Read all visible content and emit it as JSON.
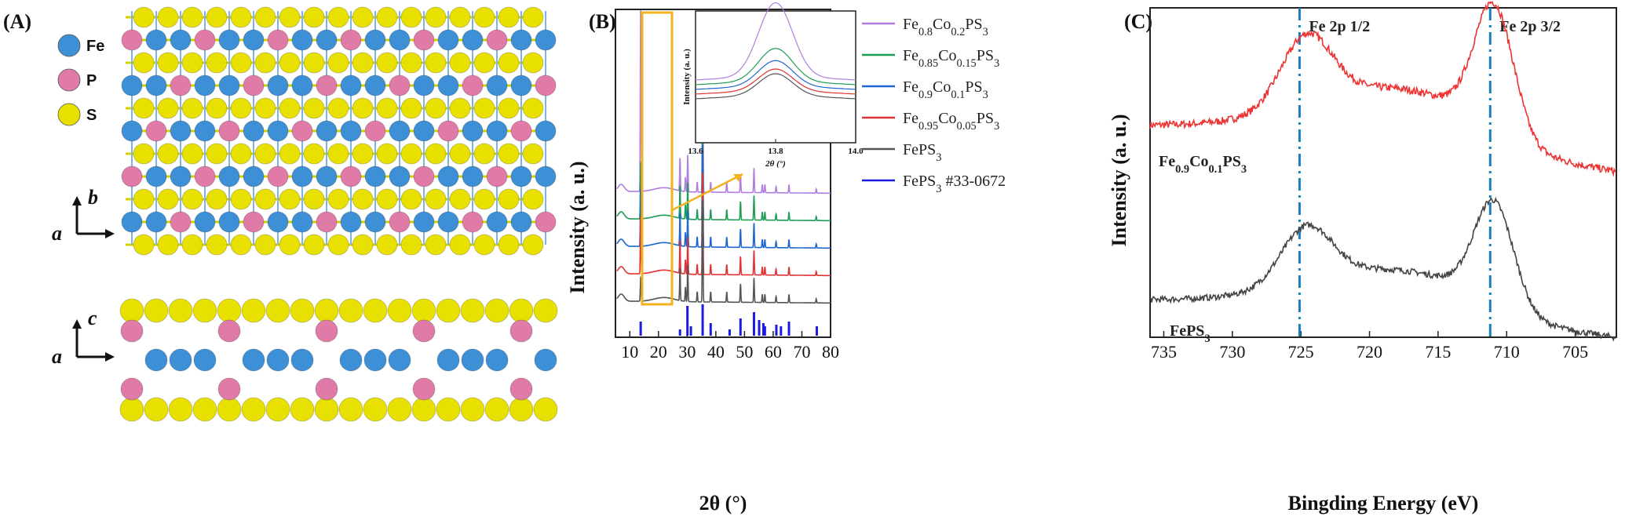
{
  "panels": {
    "a": {
      "label": "(A)"
    },
    "b": {
      "label": "(B)"
    },
    "c": {
      "label": "(C)"
    }
  },
  "structure": {
    "legend": [
      {
        "name": "Fe",
        "color": "#3d8fd6"
      },
      {
        "name": "P",
        "color": "#e07aa6"
      },
      {
        "name": "S",
        "color": "#e8e000"
      }
    ],
    "top_view_axes": {
      "vertical": "b",
      "horizontal": "a"
    },
    "side_view_axes": {
      "vertical": "c",
      "horizontal": "a"
    }
  },
  "chart_data": [
    {
      "type": "line",
      "panel": "B",
      "xlabel": "2θ (°)",
      "ylabel": "Intensity (a. u.)",
      "xlim": [
        5,
        80
      ],
      "xticks": [
        10,
        20,
        30,
        40,
        50,
        60,
        70,
        80
      ],
      "series": [
        {
          "name": "Fe0.8Co0.2PS3",
          "color": "#b07ee0",
          "offset": 4
        },
        {
          "name": "Fe0.85Co0.15PS3",
          "color": "#1f9c55",
          "offset": 3
        },
        {
          "name": "Fe0.9Co0.1PS3",
          "color": "#1e66d0",
          "offset": 2
        },
        {
          "name": "Fe0.95Co0.05PS3",
          "color": "#e03333",
          "offset": 1
        },
        {
          "name": "FePS3",
          "color": "#555555",
          "offset": 0
        }
      ],
      "peaks": [
        {
          "x": 13.8,
          "h": 1.0
        },
        {
          "x": 27.5,
          "h": 0.16
        },
        {
          "x": 29.4,
          "h": 0.07
        },
        {
          "x": 30.2,
          "h": 0.18
        },
        {
          "x": 33.5,
          "h": 0.05
        },
        {
          "x": 35.4,
          "h": 0.5
        },
        {
          "x": 38.2,
          "h": 0.05
        },
        {
          "x": 43.8,
          "h": 0.05
        },
        {
          "x": 48.6,
          "h": 0.09
        },
        {
          "x": 53.3,
          "h": 0.12
        },
        {
          "x": 56.2,
          "h": 0.04
        },
        {
          "x": 57.1,
          "h": 0.04
        },
        {
          "x": 61.0,
          "h": 0.03
        },
        {
          "x": 65.5,
          "h": 0.04
        },
        {
          "x": 75.0,
          "h": 0.02
        }
      ],
      "reference": {
        "name": "FePS3 #33-0672",
        "color": "#1a1ae0",
        "sticks": [
          {
            "x": 13.8,
            "h": 0.45
          },
          {
            "x": 27.5,
            "h": 0.2
          },
          {
            "x": 30.1,
            "h": 0.95
          },
          {
            "x": 31.3,
            "h": 0.3
          },
          {
            "x": 35.4,
            "h": 1.0
          },
          {
            "x": 38.2,
            "h": 0.4
          },
          {
            "x": 44.8,
            "h": 0.2
          },
          {
            "x": 48.6,
            "h": 0.55
          },
          {
            "x": 53.3,
            "h": 0.75
          },
          {
            "x": 55.1,
            "h": 0.5
          },
          {
            "x": 56.6,
            "h": 0.4
          },
          {
            "x": 57.1,
            "h": 0.3
          },
          {
            "x": 61.1,
            "h": 0.35
          },
          {
            "x": 62.7,
            "h": 0.3
          },
          {
            "x": 65.5,
            "h": 0.45
          },
          {
            "x": 75.2,
            "h": 0.3
          }
        ]
      },
      "legend_entries": [
        {
          "label": "Fe0.8Co0.2PS3",
          "color": "#b07ee0"
        },
        {
          "label": "Fe0.85Co0.15PS3",
          "color": "#1f9c55"
        },
        {
          "label": "Fe0.9Co0.1PS3",
          "color": "#1e66d0"
        },
        {
          "label": "Fe0.95Co0.05PS3",
          "color": "#e03333"
        },
        {
          "label": "FePS3",
          "color": "#555555"
        },
        {
          "label": "FePS3 #33-0672",
          "color": "#1a1ae0"
        }
      ],
      "inset": {
        "xlabel": "2θ (°)",
        "ylabel": "Intensity (a. u.)",
        "xlim": [
          13.6,
          14.0
        ],
        "xticks": [
          "13.6",
          "13.8",
          "14.0"
        ],
        "peak_center": 13.8,
        "peak_heights": [
          1.0,
          0.45,
          0.35,
          0.3,
          0.3
        ]
      }
    },
    {
      "type": "line",
      "panel": "C",
      "xlabel": "Bingding Energy (eV)",
      "ylabel": "Intensity (a. u.)",
      "xlim": [
        736,
        702
      ],
      "xticks": [
        735,
        730,
        725,
        720,
        715,
        710,
        705
      ],
      "series": [
        {
          "name": "Fe0.9Co0.1PS3",
          "color": "#ee3333",
          "offset": 1
        },
        {
          "name": "FePS3",
          "color": "#444444",
          "offset": 0
        }
      ],
      "reference_lines": [
        {
          "x": 725.1,
          "label": "Fe 2p 1/2"
        },
        {
          "x": 711.2,
          "label": "Fe 2p 3/2"
        }
      ],
      "reference_line_color": "#1a7fc0",
      "series_labels": {
        "red": "Fe0.9Co0.1PS3",
        "grey": "FePS3"
      }
    }
  ]
}
